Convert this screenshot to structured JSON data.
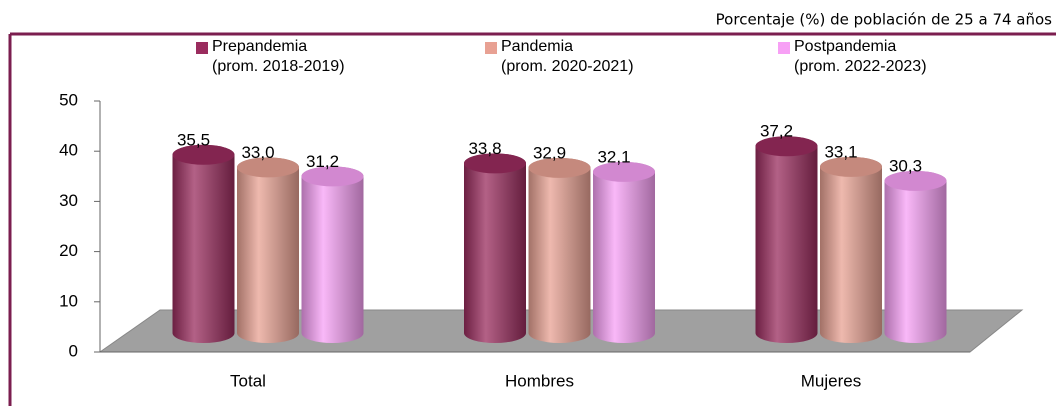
{
  "chart_data": {
    "type": "bar3d",
    "subtitle": "Porcentaje (%) de población de 25 a 74 años",
    "categories": [
      "Total",
      "Hombres",
      "Mujeres"
    ],
    "series": [
      {
        "name": "Prepandemia\n(prom. 2018-2019)",
        "color": "#9a2c5e",
        "values": [
          35.5,
          33.8,
          37.2
        ],
        "value_labels": [
          "35,5",
          "33,8",
          "37,2"
        ]
      },
      {
        "name": "Pandemia\n(prom. 2020-2021)",
        "color": "#e8a193",
        "values": [
          33.0,
          32.9,
          33.1
        ],
        "value_labels": [
          "33,0",
          "32,9",
          "33,1"
        ]
      },
      {
        "name": "Postpandemia\n(prom. 2022-2023)",
        "color": "#f7a0f5",
        "values": [
          31.2,
          32.1,
          30.3
        ],
        "value_labels": [
          "31,2",
          "32,1",
          "30,3"
        ]
      }
    ],
    "ylim": [
      0,
      50
    ],
    "yticks": [
      0,
      10,
      20,
      30,
      40,
      50
    ],
    "grid": false,
    "legend": "top"
  }
}
